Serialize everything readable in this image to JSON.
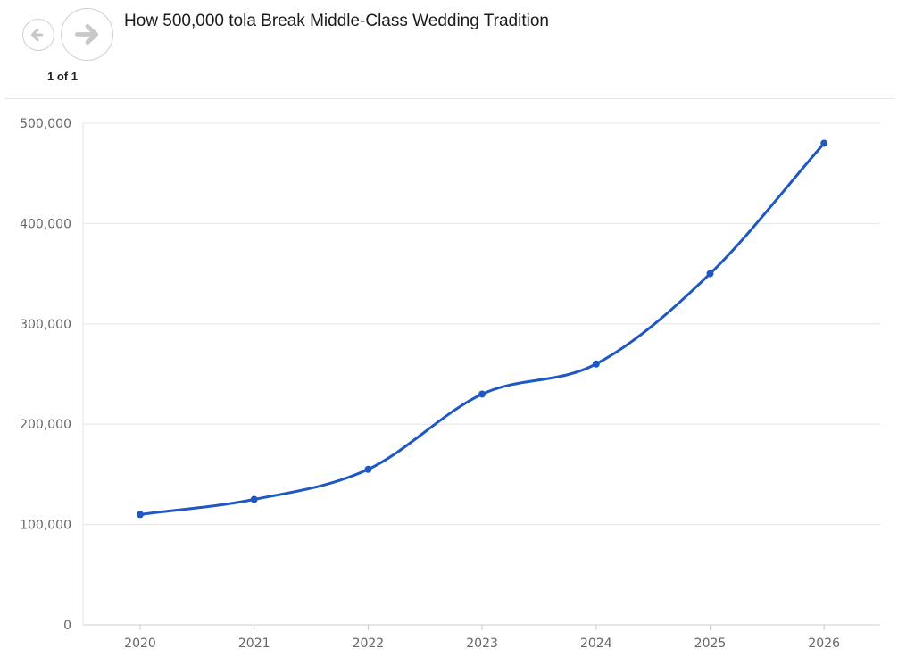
{
  "header": {
    "title": "How 500,000 tola Break Middle-Class Wedding Tradition",
    "pager": "1 of 1",
    "prev_icon": "arrow-left-icon",
    "next_icon": "arrow-right-icon"
  },
  "colors": {
    "line": "#1f57c3",
    "grid": "#e6e6e6",
    "axis": "#cccccc"
  },
  "chart_data": {
    "type": "line",
    "title": "How 500,000 tola Break Middle-Class Wedding Tradition",
    "xlabel": "",
    "ylabel": "",
    "x": [
      "2020",
      "2021",
      "2022",
      "2023",
      "2024",
      "2025",
      "2026"
    ],
    "series": [
      {
        "values": [
          110000,
          125000,
          155000,
          230000,
          260000,
          350000,
          480000
        ]
      }
    ],
    "ylim": [
      0,
      500000
    ],
    "yticks": [
      0,
      100000,
      200000,
      300000,
      400000,
      500000
    ],
    "ytick_labels": [
      "0",
      "100,000",
      "200,000",
      "300,000",
      "400,000",
      "500,000"
    ],
    "grid": true,
    "smooth": true,
    "legend": "none"
  }
}
